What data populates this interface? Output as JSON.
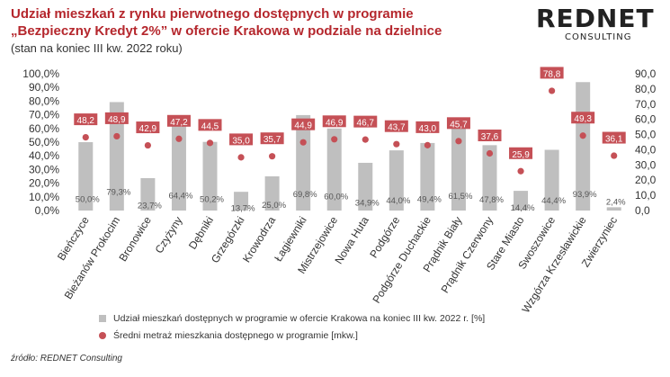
{
  "title_line1": "Udział mieszkań z rynku pierwotnego dostępnych w programie",
  "title_line2": "„Bezpieczny Kredyt 2%” w ofercie Krakowa w podziale na dzielnice",
  "subtitle": "(stan na koniec III kw. 2022 roku)",
  "logo": {
    "main": "REDNET",
    "sub": "CONSULTING"
  },
  "source": "źródło: REDNET Consulting",
  "colors": {
    "bar": "#bfbfbf",
    "dot": "#c55056",
    "label_box": "#c55056",
    "title": "#b5272d"
  },
  "chart_data": {
    "type": "bar",
    "categories": [
      "Bieńczyce",
      "Bieżanów Prokocim",
      "Bronowice",
      "Czyżyny",
      "Dębniki",
      "Grzegórzki",
      "Krowodrza",
      "Łagiewniki",
      "Mistrzejowice",
      "Nowa Huta",
      "Podgórze",
      "Podgórze Duchackie",
      "Prądnik Biały",
      "Prądnik Czerwony",
      "Stare Miasto",
      "Swoszowice",
      "Wzgórza Krzesławickie",
      "Zwierzyniec"
    ],
    "series": [
      {
        "name": "Udział mieszkań dostępnych w programie w ofercie Krakowa na koniec III kw. 2022 r. [%]",
        "axis": "left",
        "values": [
          50.0,
          79.3,
          23.7,
          64.4,
          50.2,
          13.7,
          25.0,
          69.8,
          60.0,
          34.9,
          44.0,
          49.4,
          61.5,
          47.8,
          14.4,
          44.4,
          93.9,
          2.4
        ],
        "labels": [
          "50,0%",
          "79,3%",
          "23,7%",
          "64,4%",
          "50,2%",
          "13,7%",
          "25,0%",
          "69,8%",
          "60,0%",
          "34,9%",
          "44,0%",
          "49,4%",
          "61,5%",
          "47,8%",
          "14,4%",
          "44,4%",
          "93,9%",
          "2,4%"
        ]
      },
      {
        "name": "Średni metraż mieszkania dostępnego w programie [mkw.]",
        "axis": "right",
        "type": "scatter",
        "values": [
          48.2,
          48.9,
          42.9,
          47.2,
          44.5,
          35.0,
          35.7,
          44.9,
          46.9,
          46.7,
          43.7,
          43.0,
          45.7,
          37.6,
          25.9,
          78.8,
          49.3,
          36.1
        ],
        "labels": [
          "48,2",
          "48,9",
          "42,9",
          "47,2",
          "44,5",
          "35,0",
          "35,7",
          "44,9",
          "46,9",
          "46,7",
          "43,7",
          "43,0",
          "45,7",
          "37,6",
          "25,9",
          "78,8",
          "49,3",
          "36,1"
        ]
      }
    ],
    "y_left": {
      "lim": [
        0,
        100
      ],
      "ticks": [
        "0,0%",
        "10,0%",
        "20,0%",
        "30,0%",
        "40,0%",
        "50,0%",
        "60,0%",
        "70,0%",
        "80,0%",
        "90,0%",
        "100,0%"
      ]
    },
    "y_right": {
      "lim": [
        0,
        90
      ],
      "ticks": [
        "0,0",
        "10,0",
        "20,0",
        "30,0",
        "40,0",
        "50,0",
        "60,0",
        "70,0",
        "80,0",
        "90,0"
      ]
    },
    "legend_position": "bottom",
    "grid": false
  }
}
